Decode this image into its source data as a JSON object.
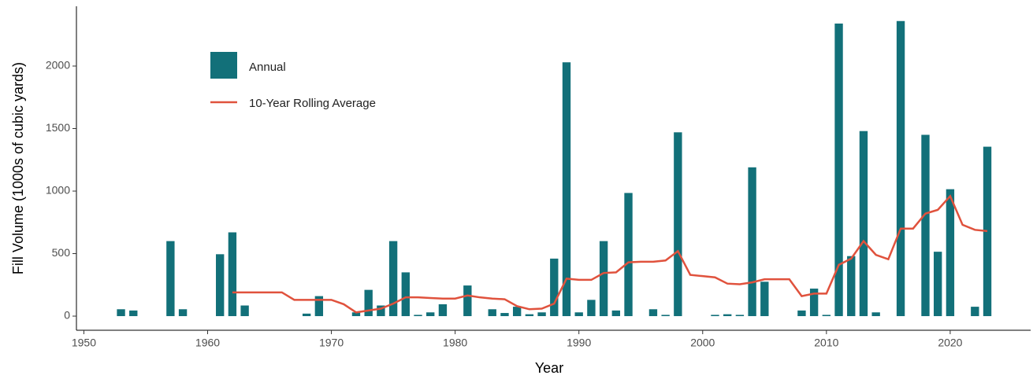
{
  "chart_data": {
    "type": "bar",
    "xlabel": "Year",
    "ylabel": "Fill Volume (1000s of cubic yards)",
    "xlim": [
      1949.4,
      2026.5
    ],
    "ylim": [
      -113,
      2478
    ],
    "xticks": [
      1950,
      1960,
      1970,
      1980,
      1990,
      2000,
      2010,
      2020
    ],
    "yticks": [
      0,
      500,
      1000,
      1500,
      2000
    ],
    "legend": "top-left",
    "series": [
      {
        "name": "Annual",
        "type": "bar",
        "color": "#127079",
        "x": [
          1953,
          1954,
          1957,
          1958,
          1961,
          1962,
          1963,
          1968,
          1969,
          1972,
          1973,
          1974,
          1975,
          1976,
          1977,
          1978,
          1979,
          1981,
          1983,
          1984,
          1985,
          1986,
          1987,
          1988,
          1989,
          1990,
          1991,
          1992,
          1993,
          1994,
          1996,
          1997,
          1998,
          2001,
          2002,
          2003,
          2004,
          2005,
          2008,
          2009,
          2010,
          2011,
          2012,
          2013,
          2014,
          2016,
          2018,
          2019,
          2020,
          2022,
          2023
        ],
        "values": [
          55,
          45,
          600,
          55,
          495,
          670,
          85,
          20,
          160,
          30,
          210,
          85,
          600,
          350,
          10,
          30,
          95,
          245,
          55,
          25,
          75,
          15,
          30,
          460,
          2030,
          30,
          130,
          600,
          45,
          985,
          55,
          10,
          1470,
          10,
          15,
          10,
          1190,
          275,
          45,
          220,
          10,
          2340,
          480,
          1480,
          30,
          2360,
          1450,
          515,
          1015,
          75,
          1355
        ]
      },
      {
        "name": "10-Year Rolling Average",
        "type": "line",
        "color": "#e0523d",
        "x": [
          1962,
          1963,
          1964,
          1965,
          1966,
          1967,
          1968,
          1969,
          1970,
          1971,
          1972,
          1973,
          1974,
          1975,
          1976,
          1977,
          1978,
          1979,
          1980,
          1981,
          1982,
          1983,
          1984,
          1985,
          1986,
          1987,
          1988,
          1989,
          1990,
          1991,
          1992,
          1993,
          1994,
          1995,
          1996,
          1997,
          1998,
          1999,
          2000,
          2001,
          2002,
          2003,
          2004,
          2005,
          2006,
          2007,
          2008,
          2009,
          2010,
          2011,
          2012,
          2013,
          2014,
          2015,
          2016,
          2017,
          2018,
          2019,
          2020,
          2021,
          2022,
          2023
        ],
        "values": [
          190,
          190,
          190,
          190,
          190,
          130,
          130,
          130,
          130,
          95,
          30,
          45,
          60,
          100,
          150,
          150,
          145,
          140,
          140,
          165,
          150,
          140,
          135,
          80,
          55,
          60,
          100,
          300,
          290,
          290,
          345,
          350,
          430,
          435,
          435,
          445,
          520,
          330,
          320,
          310,
          260,
          255,
          270,
          295,
          295,
          295,
          160,
          180,
          180,
          410,
          460,
          600,
          490,
          455,
          700,
          700,
          820,
          850,
          960,
          730,
          690,
          680
        ]
      }
    ]
  }
}
